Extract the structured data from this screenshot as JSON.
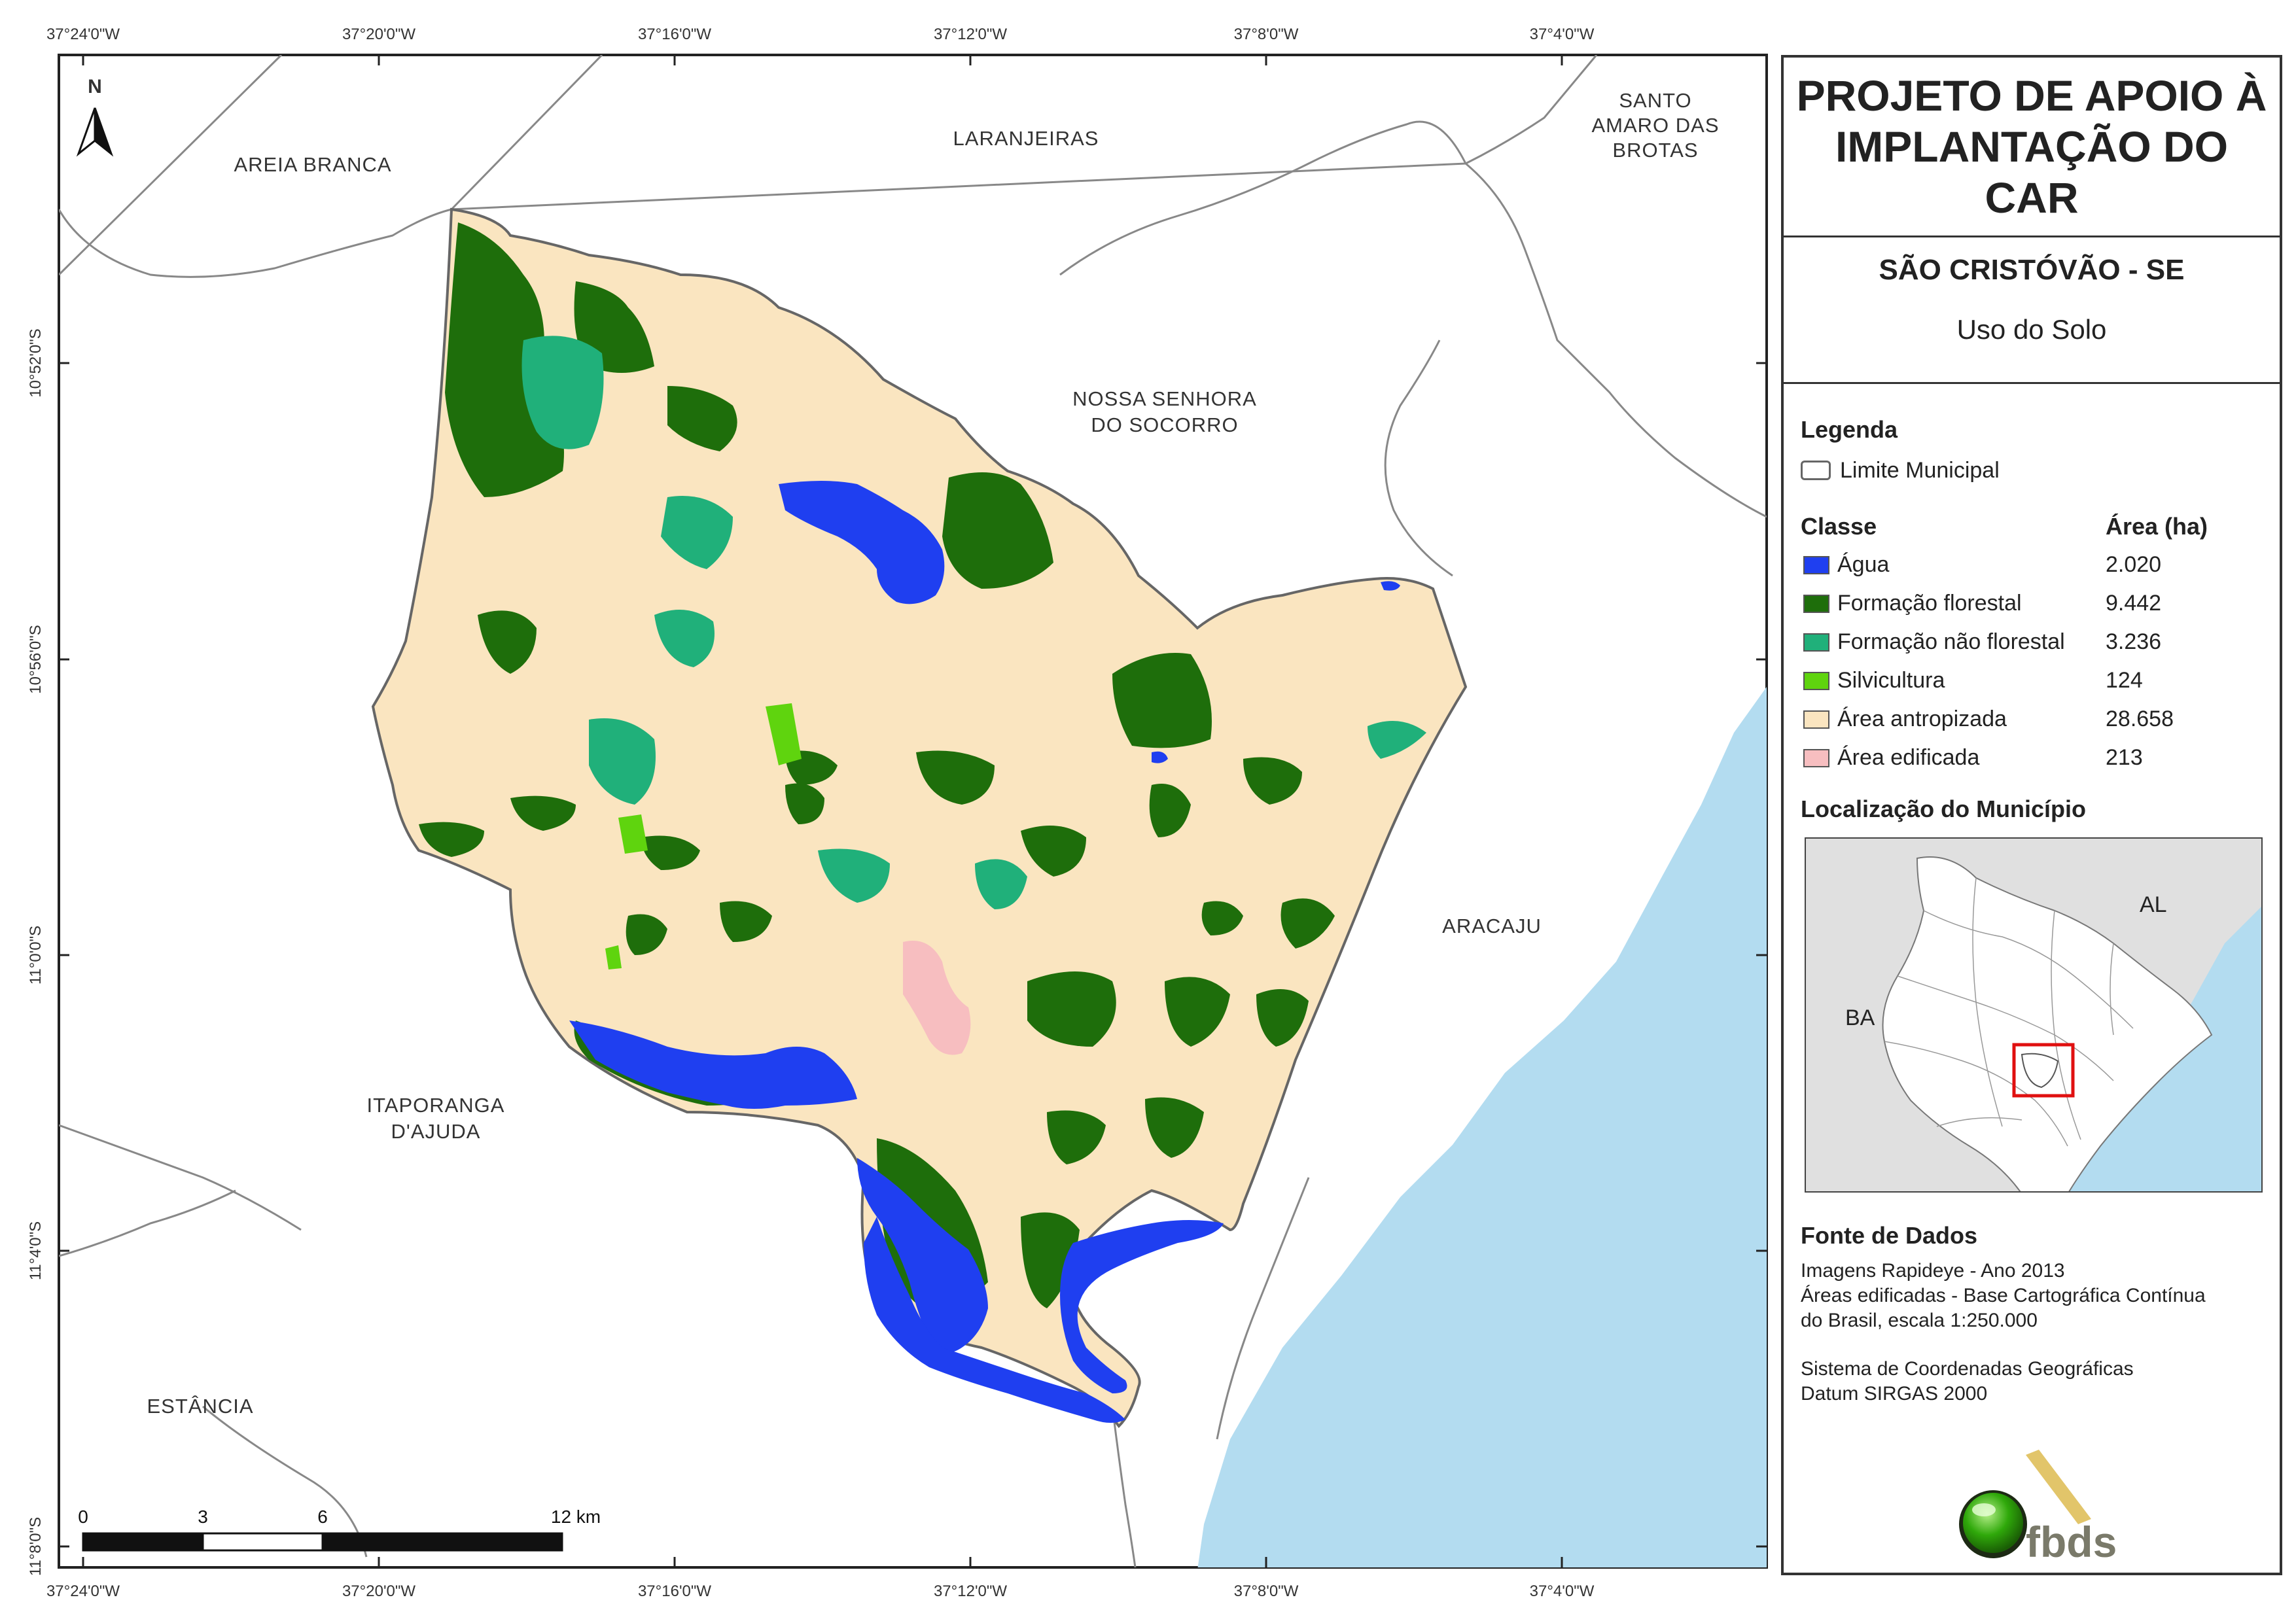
{
  "map": {
    "coords_top": [
      "37°24'0\"W",
      "37°20'0\"W",
      "37°16'0\"W",
      "37°12'0\"W",
      "37°8'0\"W",
      "37°4'0\"W"
    ],
    "coords_bottom": [
      "37°24'0\"W",
      "37°20'0\"W",
      "37°16'0\"W",
      "37°12'0\"W",
      "37°8'0\"W",
      "37°4'0\"W"
    ],
    "coords_left": [
      "10°52'0\"S",
      "10°56'0\"S",
      "11°0'0\"S",
      "11°4'0\"S",
      "11°8'0\"S"
    ],
    "north_label": "N",
    "places": {
      "areia_branca": "AREIA BRANCA",
      "laranjeiras": "LARANJEIRAS",
      "santo_amaro_1": "SANTO",
      "santo_amaro_2": "AMARO DAS",
      "santo_amaro_3": "BROTAS",
      "socorro_1": "NOSSA SENHORA",
      "socorro_2": "DO SOCORRO",
      "aracaju": "ARACAJU",
      "itaporanga_1": "ITAPORANGA",
      "itaporanga_2": "D'AJUDA",
      "estancia": "ESTÂNCIA"
    },
    "scale": {
      "t0": "0",
      "t3": "3",
      "t6": "6",
      "t12": "12 km"
    },
    "colors": {
      "agua": "#1f3ff0",
      "formacao_florestal": "#1e6e0b",
      "formacao_nao_florestal": "#20b07a",
      "silvicultura": "#5fd40e",
      "area_antropizada": "#fae5c0",
      "area_edificada": "#f7bec0",
      "ocean": "#b3dcf0"
    }
  },
  "panel": {
    "title_1": "PROJETO DE APOIO À",
    "title_2": "IMPLANTAÇÃO DO CAR",
    "municipality": "SÃO CRISTÓVÃO - SE",
    "theme": "Uso do Solo",
    "legend_heading": "Legenda",
    "limit_label": "Limite Municipal",
    "class_heading": "Classe",
    "area_heading": "Área (ha)",
    "classes": [
      {
        "label": "Água",
        "area": "2.020",
        "color": "#1f3ff0"
      },
      {
        "label": "Formação florestal",
        "area": "9.442",
        "color": "#1e6e0b"
      },
      {
        "label": "Formação não florestal",
        "area": "3.236",
        "color": "#20b07a"
      },
      {
        "label": "Silvicultura",
        "area": "124",
        "color": "#5fd40e"
      },
      {
        "label": "Área antropizada",
        "area": "28.658",
        "color": "#fae5c0"
      },
      {
        "label": "Área edificada",
        "area": "213",
        "color": "#f7bec0"
      }
    ],
    "location_heading": "Localização do Município",
    "inset_al": "AL",
    "inset_ba": "BA",
    "sources_heading": "Fonte de Dados",
    "sources": [
      "Imagens Rapideye - Ano 2013",
      "Áreas edificadas - Base Cartográfica Contínua",
      "do Brasil, escala 1:250.000"
    ],
    "crs": [
      "Sistema de Coordenadas Geográficas",
      "Datum SIRGAS 2000"
    ],
    "logo_text": "fbds"
  }
}
